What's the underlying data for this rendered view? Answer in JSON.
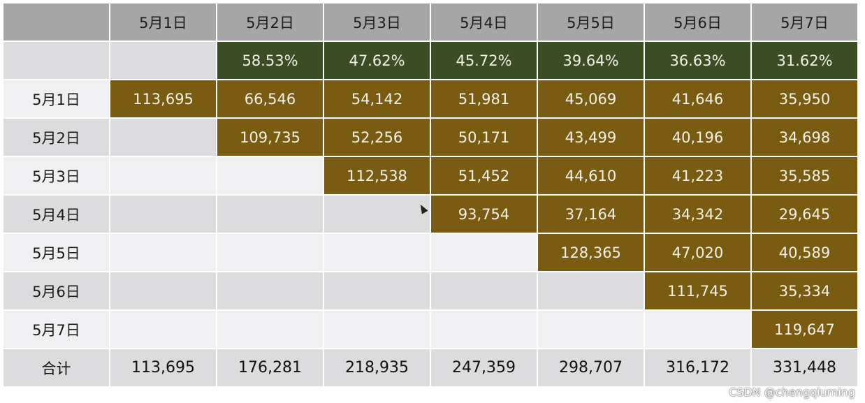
{
  "chart_data": {
    "type": "table",
    "columns": [
      "5月1日",
      "5月2日",
      "5月3日",
      "5月4日",
      "5月5日",
      "5月6日",
      "5月7日"
    ],
    "rates": [
      "",
      "58.53%",
      "47.62%",
      "45.72%",
      "39.64%",
      "36.63%",
      "31.62%"
    ],
    "rows": [
      {
        "label": "5月1日",
        "values": [
          "113,695",
          "66,546",
          "54,142",
          "51,981",
          "45,069",
          "41,646",
          "35,950"
        ]
      },
      {
        "label": "5月2日",
        "values": [
          "",
          "109,735",
          "52,256",
          "50,171",
          "43,499",
          "40,196",
          "34,698"
        ]
      },
      {
        "label": "5月3日",
        "values": [
          "",
          "",
          "112,538",
          "51,452",
          "44,610",
          "41,223",
          "35,585"
        ]
      },
      {
        "label": "5月4日",
        "values": [
          "",
          "",
          "",
          "93,754",
          "37,164",
          "34,342",
          "29,645"
        ]
      },
      {
        "label": "5月5日",
        "values": [
          "",
          "",
          "",
          "",
          "128,365",
          "47,020",
          "40,589"
        ]
      },
      {
        "label": "5月6日",
        "values": [
          "",
          "",
          "",
          "",
          "",
          "111,745",
          "35,334"
        ]
      },
      {
        "label": "5月7日",
        "values": [
          "",
          "",
          "",
          "",
          "",
          "",
          "119,647"
        ]
      }
    ],
    "total": {
      "label": "合计",
      "values": [
        "113,695",
        "176,281",
        "218,935",
        "247,359",
        "298,707",
        "316,172",
        "331,448"
      ]
    }
  },
  "colors": {
    "header": "#a6a6a6",
    "rate_cell": "#3b4d22",
    "value_cell": "#7a5b12",
    "row_light": "#f0f0f2",
    "row_dark": "#dcdcde"
  },
  "watermark": "CSDN @chengqiuming"
}
